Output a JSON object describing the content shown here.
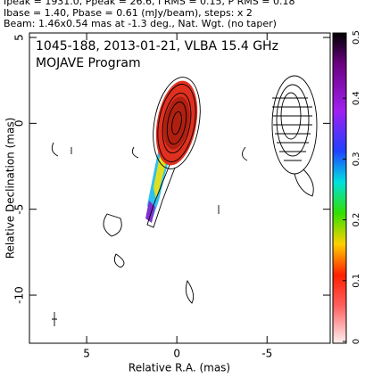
{
  "chart_data": {
    "type": "contour",
    "header": [
      "Ipeak = 1931.0, Ppeak = 26.6, I RMS = 0.15, P RMS = 0.18",
      "Ibase = 1.40, Pbase = 0.61 (mJy/beam), steps: x 2",
      "Beam: 1.46x0.54 mas at -1.3 deg., Nat. Wgt. (no taper)"
    ],
    "title": "1045-188, 2013-01-21, VLBA 15.4 GHz",
    "subtitle": "MOJAVE Program",
    "xlabel": "Relative R.A. (mas)",
    "ylabel": "Relative Declination (mas)",
    "xlim": [
      8.17,
      -8.5
    ],
    "ylim": [
      -12.8,
      5.26
    ],
    "xticks": [
      5,
      0,
      -5
    ],
    "yticks": [
      5,
      0,
      -5,
      -10
    ],
    "colorbar": {
      "lim": [
        0,
        0.5
      ],
      "ticks": [
        0,
        0.1,
        0.2,
        0.3,
        0.4,
        0.5
      ]
    }
  }
}
